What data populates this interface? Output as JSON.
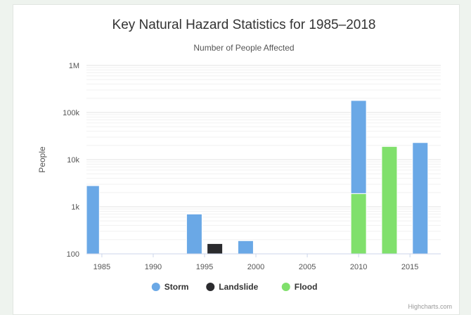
{
  "chart_data": {
    "type": "bar",
    "title": "Key Natural Hazard Statistics for 1985–2018",
    "subtitle": "Number of People Affected",
    "xlabel": "",
    "ylabel": "People",
    "yscale": "log",
    "ylim": [
      100,
      1000000
    ],
    "xlim": [
      1983.5,
      2018
    ],
    "x_ticks": [
      "1985",
      "1990",
      "1995",
      "2000",
      "2005",
      "2010",
      "2015"
    ],
    "y_ticks": [
      "100",
      "1k",
      "10k",
      "100k",
      "1M"
    ],
    "legend": "bottom",
    "grid": true,
    "stacked": true,
    "series": [
      {
        "name": "Storm",
        "color": "#6aa8e6",
        "points": [
          {
            "x": 1984,
            "y": 2800
          },
          {
            "x": 1994,
            "y": 700
          },
          {
            "x": 1999,
            "y": 190
          },
          {
            "x": 2010,
            "y": 180000
          },
          {
            "x": 2016,
            "y": 23000
          }
        ]
      },
      {
        "name": "Landslide",
        "color": "#2b2b2e",
        "points": [
          {
            "x": 1996,
            "y": 165
          }
        ]
      },
      {
        "name": "Flood",
        "color": "#80e06c",
        "points": [
          {
            "x": 2010,
            "y": 1900
          },
          {
            "x": 2013,
            "y": 19000
          }
        ]
      }
    ]
  },
  "credits": "Highcharts.com"
}
